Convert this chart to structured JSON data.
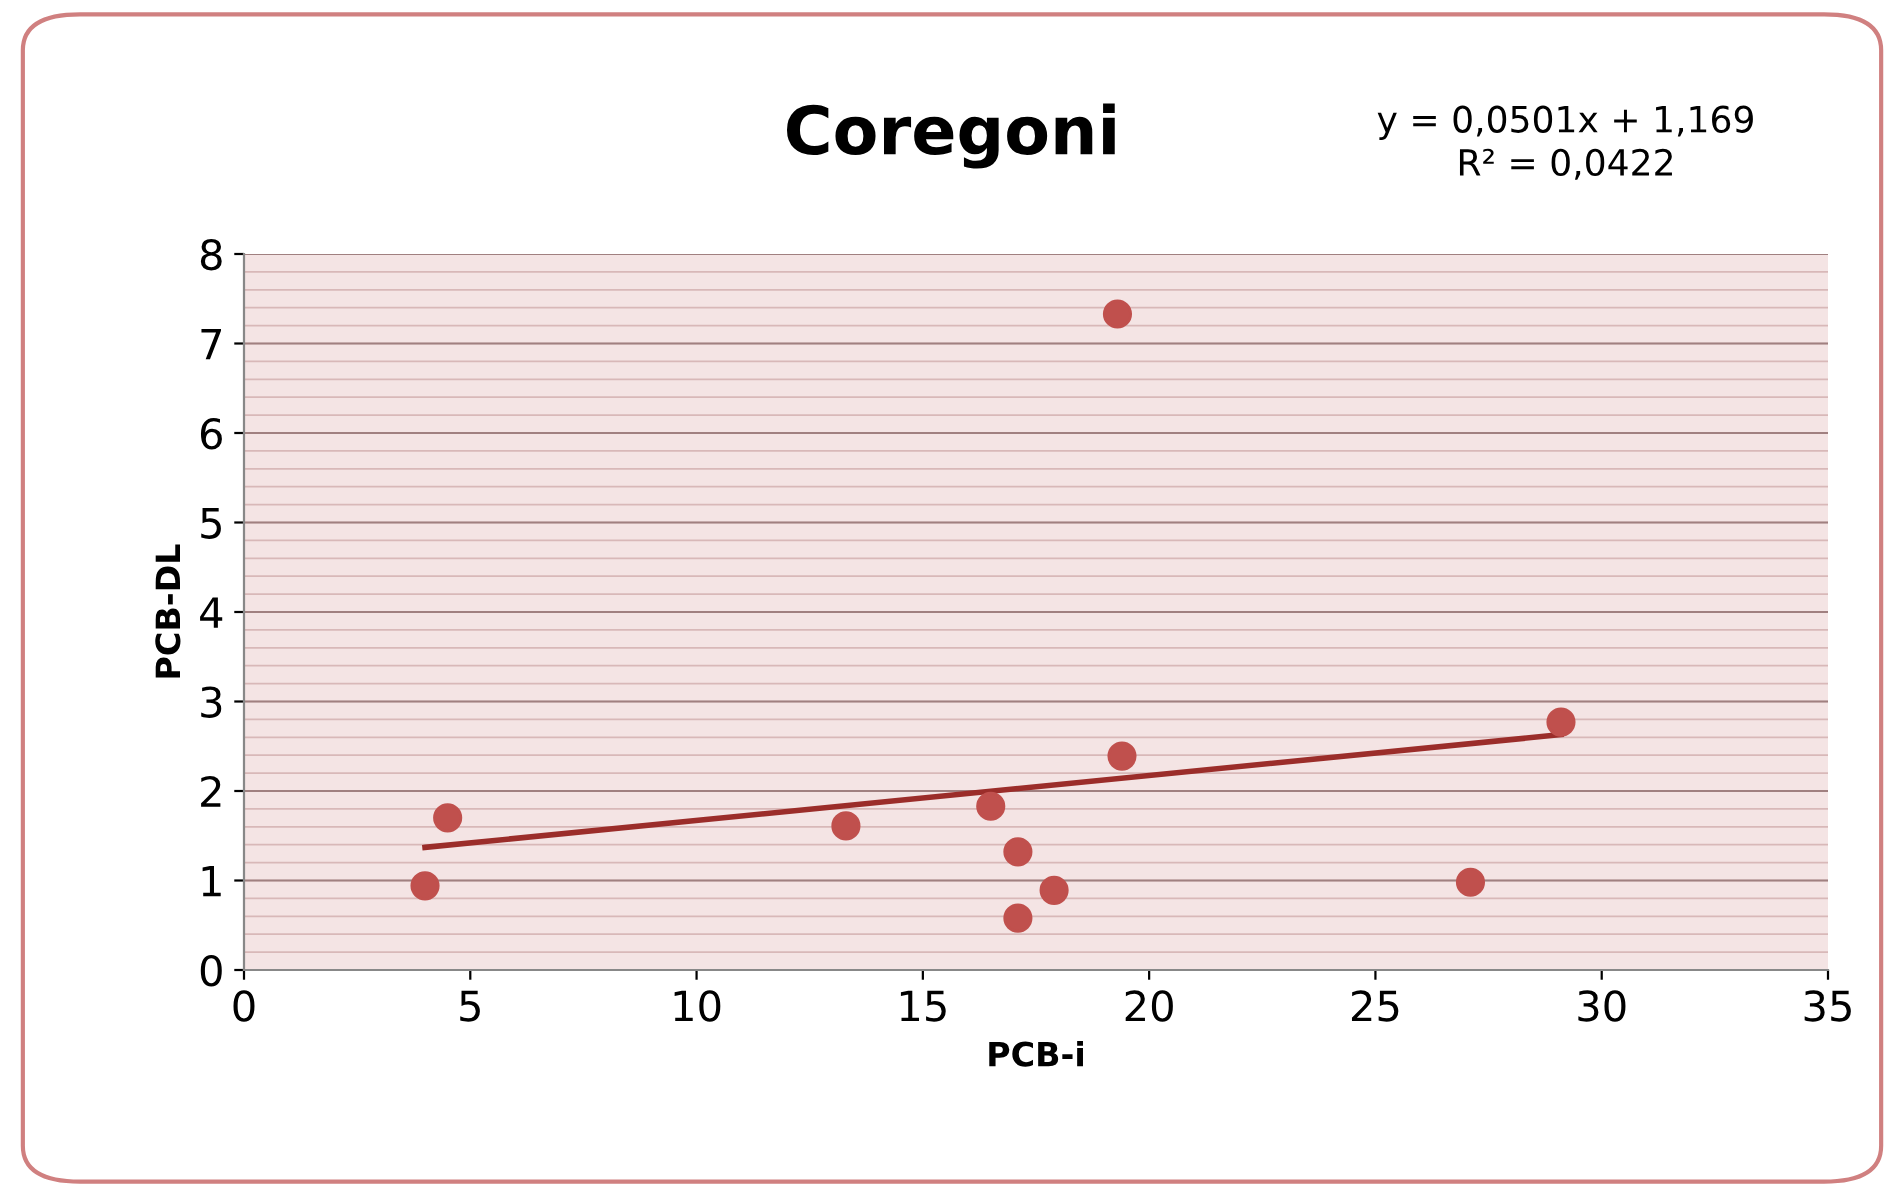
{
  "chart_data": {
    "type": "scatter",
    "title": "Coregoni",
    "xlabel": "PCB-i",
    "ylabel": "PCB-DL",
    "annotations": [
      "y = 0,0501x + 1,169\nR² = 0,0422"
    ],
    "series": [
      {
        "color": "#c0504d",
        "marker": "circle",
        "x": [
          4.0,
          4.5,
          13.3,
          16.5,
          17.1,
          17.1,
          17.9,
          19.3,
          19.4,
          27.1,
          29.1
        ],
        "values": [
          0.94,
          1.7,
          1.61,
          1.83,
          1.32,
          0.58,
          0.89,
          7.33,
          2.39,
          0.98,
          2.77
        ]
      },
      {
        "type": "line",
        "color": "#9b2d2a",
        "marker": "none",
        "x": [
          4.0,
          29.1
        ],
        "values": [
          1.37,
          2.63
        ]
      }
    ],
    "xlim": [
      0,
      35
    ],
    "xticks": [
      0,
      5,
      10,
      15,
      20,
      25,
      30,
      35
    ],
    "ylim": [
      0,
      8
    ],
    "yticks": [
      0,
      1,
      2,
      3,
      4,
      5,
      6,
      7,
      8
    ],
    "grid": "y",
    "legend": false
  }
}
